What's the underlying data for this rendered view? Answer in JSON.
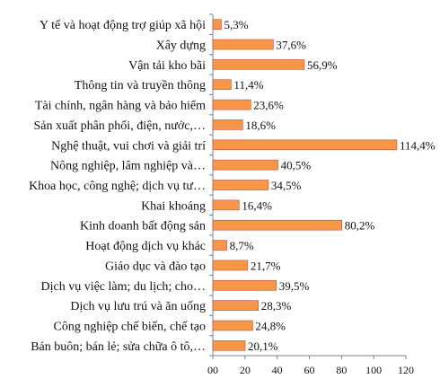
{
  "chart_data": {
    "type": "bar",
    "orientation": "horizontal",
    "categories": [
      "Y tế và hoạt động trợ giúp xã hội",
      "Xây dựng",
      "Vận tải kho bãi",
      "Thông tin và truyền thông",
      "Tài chính, ngân hàng và bảo hiểm",
      "Sản xuất phân phối, điện, nước,…",
      "Nghệ thuật, vui chơi và giải trí",
      "Nông nghiệp, lâm nghiệp và…",
      "Khoa học, công nghệ; dịch vụ tư…",
      "Khai khoáng",
      "Kinh doanh bất động sản",
      "Hoạt động dịch vụ khác",
      "Giáo dục và đào tạo",
      "Dịch vụ việc làm; du lịch; cho…",
      "Dịch vụ lưu trú và ăn uống",
      "Công nghiệp chế biến, chế tạo",
      "Bán buôn; bán lẻ; sửa chữa ô tô,…"
    ],
    "values": [
      5.3,
      37.6,
      56.9,
      11.4,
      23.6,
      18.6,
      114.4,
      40.5,
      34.5,
      16.4,
      80.2,
      8.7,
      21.7,
      39.5,
      28.3,
      24.8,
      20.1
    ],
    "value_labels": [
      "5,3%",
      "37,6%",
      "56,9%",
      "11,4%",
      "23,6%",
      "18,6%",
      "114,4%",
      "40,5%",
      "34,5%",
      "16,4%",
      "80,2%",
      "8,7%",
      "21,7%",
      "39,5%",
      "28,3%",
      "24,8%",
      "20,1%"
    ],
    "xlim": [
      0,
      120
    ],
    "x_ticks": [
      "00",
      "20",
      "40",
      "60",
      "80",
      "100",
      "120"
    ],
    "title": "",
    "xlabel": "",
    "ylabel": "",
    "grid": false,
    "legend": "none",
    "colors": {
      "bar_fill": "#F79646",
      "bar_stroke": "#C0504D",
      "axis": "#808080"
    }
  }
}
